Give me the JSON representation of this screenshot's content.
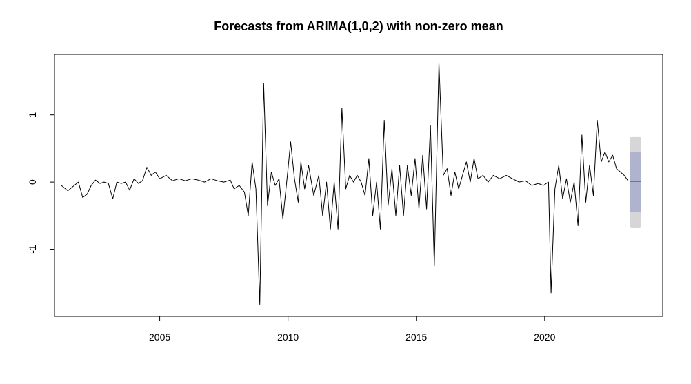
{
  "chart_data": {
    "type": "line",
    "title": "Forecasts from ARIMA(1,0,2) with non-zero mean",
    "xlabel": "",
    "ylabel": "",
    "xlim": [
      2000.9,
      2024.6
    ],
    "ylim": [
      -2.0,
      1.9
    ],
    "x_ticks": [
      2005,
      2010,
      2015,
      2020
    ],
    "x_tick_labels": [
      "2005",
      "2010",
      "2015",
      "2020"
    ],
    "y_ticks": [
      -1,
      0,
      1
    ],
    "y_tick_labels": [
      "-1",
      "0",
      "1"
    ],
    "grid": false,
    "legend": "none",
    "series": [
      {
        "color": "#000000",
        "points": [
          [
            2001.17,
            -0.05
          ],
          [
            2001.42,
            -0.13
          ],
          [
            2001.67,
            -0.05
          ],
          [
            2001.83,
            0.0
          ],
          [
            2002.0,
            -0.23
          ],
          [
            2002.17,
            -0.18
          ],
          [
            2002.33,
            -0.05
          ],
          [
            2002.5,
            0.03
          ],
          [
            2002.67,
            -0.02
          ],
          [
            2002.83,
            0.0
          ],
          [
            2003.0,
            -0.02
          ],
          [
            2003.17,
            -0.25
          ],
          [
            2003.33,
            0.0
          ],
          [
            2003.5,
            -0.02
          ],
          [
            2003.67,
            0.0
          ],
          [
            2003.83,
            -0.12
          ],
          [
            2004.0,
            0.05
          ],
          [
            2004.17,
            -0.02
          ],
          [
            2004.33,
            0.02
          ],
          [
            2004.5,
            0.22
          ],
          [
            2004.67,
            0.1
          ],
          [
            2004.83,
            0.15
          ],
          [
            2005.0,
            0.05
          ],
          [
            2005.25,
            0.1
          ],
          [
            2005.5,
            0.02
          ],
          [
            2005.75,
            0.05
          ],
          [
            2006.0,
            0.02
          ],
          [
            2006.25,
            0.05
          ],
          [
            2006.5,
            0.03
          ],
          [
            2006.75,
            0.0
          ],
          [
            2007.0,
            0.05
          ],
          [
            2007.25,
            0.02
          ],
          [
            2007.5,
            0.0
          ],
          [
            2007.75,
            0.03
          ],
          [
            2007.9,
            -0.1
          ],
          [
            2008.1,
            -0.05
          ],
          [
            2008.3,
            -0.15
          ],
          [
            2008.45,
            -0.5
          ],
          [
            2008.6,
            0.3
          ],
          [
            2008.75,
            -0.1
          ],
          [
            2008.9,
            -1.82
          ],
          [
            2009.05,
            1.47
          ],
          [
            2009.2,
            -0.35
          ],
          [
            2009.35,
            0.15
          ],
          [
            2009.5,
            -0.05
          ],
          [
            2009.65,
            0.05
          ],
          [
            2009.8,
            -0.55
          ],
          [
            2010.0,
            0.2
          ],
          [
            2010.1,
            0.6
          ],
          [
            2010.25,
            0.05
          ],
          [
            2010.4,
            -0.3
          ],
          [
            2010.5,
            0.3
          ],
          [
            2010.65,
            -0.1
          ],
          [
            2010.8,
            0.25
          ],
          [
            2011.0,
            -0.2
          ],
          [
            2011.2,
            0.1
          ],
          [
            2011.35,
            -0.5
          ],
          [
            2011.5,
            0.0
          ],
          [
            2011.65,
            -0.7
          ],
          [
            2011.8,
            0.0
          ],
          [
            2011.95,
            -0.7
          ],
          [
            2012.1,
            1.1
          ],
          [
            2012.25,
            -0.1
          ],
          [
            2012.4,
            0.1
          ],
          [
            2012.55,
            0.0
          ],
          [
            2012.7,
            0.1
          ],
          [
            2012.85,
            0.0
          ],
          [
            2013.0,
            -0.2
          ],
          [
            2013.15,
            0.35
          ],
          [
            2013.3,
            -0.5
          ],
          [
            2013.45,
            0.0
          ],
          [
            2013.6,
            -0.7
          ],
          [
            2013.75,
            0.92
          ],
          [
            2013.9,
            -0.35
          ],
          [
            2014.05,
            0.2
          ],
          [
            2014.2,
            -0.5
          ],
          [
            2014.35,
            0.25
          ],
          [
            2014.5,
            -0.5
          ],
          [
            2014.65,
            0.25
          ],
          [
            2014.8,
            -0.2
          ],
          [
            2014.95,
            0.35
          ],
          [
            2015.1,
            -0.4
          ],
          [
            2015.25,
            0.4
          ],
          [
            2015.4,
            -0.4
          ],
          [
            2015.55,
            0.84
          ],
          [
            2015.7,
            -1.25
          ],
          [
            2015.88,
            1.78
          ],
          [
            2016.05,
            0.1
          ],
          [
            2016.2,
            0.2
          ],
          [
            2016.35,
            -0.2
          ],
          [
            2016.5,
            0.15
          ],
          [
            2016.65,
            -0.1
          ],
          [
            2016.8,
            0.1
          ],
          [
            2016.95,
            0.3
          ],
          [
            2017.1,
            0.0
          ],
          [
            2017.25,
            0.35
          ],
          [
            2017.4,
            0.05
          ],
          [
            2017.6,
            0.1
          ],
          [
            2017.8,
            0.0
          ],
          [
            2018.0,
            0.1
          ],
          [
            2018.25,
            0.05
          ],
          [
            2018.5,
            0.1
          ],
          [
            2018.75,
            0.05
          ],
          [
            2019.0,
            0.0
          ],
          [
            2019.25,
            0.02
          ],
          [
            2019.5,
            -0.05
          ],
          [
            2019.75,
            -0.02
          ],
          [
            2019.95,
            -0.05
          ],
          [
            2020.15,
            0.0
          ],
          [
            2020.25,
            -1.65
          ],
          [
            2020.4,
            -0.1
          ],
          [
            2020.55,
            0.25
          ],
          [
            2020.7,
            -0.25
          ],
          [
            2020.85,
            0.05
          ],
          [
            2021.0,
            -0.3
          ],
          [
            2021.15,
            0.0
          ],
          [
            2021.3,
            -0.65
          ],
          [
            2021.45,
            0.7
          ],
          [
            2021.6,
            -0.3
          ],
          [
            2021.75,
            0.25
          ],
          [
            2021.9,
            -0.2
          ],
          [
            2022.05,
            0.92
          ],
          [
            2022.2,
            0.3
          ],
          [
            2022.35,
            0.45
          ],
          [
            2022.5,
            0.3
          ],
          [
            2022.65,
            0.4
          ],
          [
            2022.8,
            0.2
          ],
          [
            2022.95,
            0.15
          ],
          [
            2023.1,
            0.1
          ],
          [
            2023.25,
            0.02
          ]
        ]
      }
    ],
    "forecast": {
      "x_start": 2023.33,
      "x_end": 2023.75,
      "mean": 0.01,
      "interval_80": [
        -0.45,
        0.45
      ],
      "interval_95": [
        -0.68,
        0.68
      ],
      "mean_color": "#2f7fd0",
      "interval_80_color": "#b0b3cd",
      "interval_95_color": "#d6d6d8"
    }
  }
}
